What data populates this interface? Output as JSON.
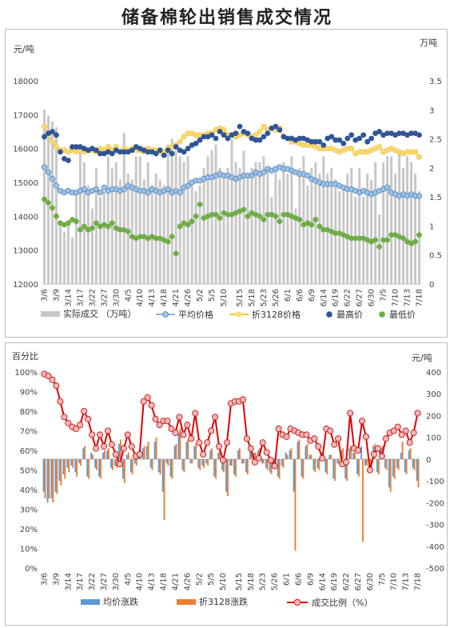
{
  "title": "储备棉轮出销售成交情况",
  "chart_data": [
    {
      "type": "bar+line+scatter",
      "left_axis": {
        "label": "元/吨",
        "ylim": [
          12000,
          18000
        ],
        "ticks": [
          12000,
          13000,
          14000,
          15000,
          16000,
          17000,
          18000
        ]
      },
      "right_axis": {
        "label": "万吨",
        "ylim": [
          0,
          3.5
        ],
        "ticks": [
          "0",
          "0.5",
          "1",
          "1.5",
          "2",
          "2.5",
          "3",
          "3.5"
        ]
      },
      "x_tick_labels": [
        "3/6",
        "3/9",
        "3/14",
        "3/17",
        "3/22",
        "3/27",
        "3/30",
        "4/5",
        "4/10",
        "4/13",
        "4/18",
        "4/21",
        "4/26",
        "5/2",
        "5/5",
        "5/10",
        "5/15",
        "5/18",
        "5/23",
        "5/26",
        "6/1",
        "6/6",
        "6/9",
        "6/14",
        "6/19",
        "6/22",
        "6/27",
        "6/30",
        "7/5",
        "7/10",
        "7/13",
        "7/18"
      ],
      "legend": [
        "实际成交 （万吨）",
        "平均价格",
        "折3128价格",
        "最高价",
        "最低价"
      ],
      "legend_position": "bottom",
      "colors": {
        "bar": "#c8c8c8",
        "avg": "#9dc3e6",
        "avg_stroke": "#4f81bd",
        "p3128": "#ffd966",
        "p3128_line": "#e5b800",
        "max": "#2f5597",
        "min": "#70ad47"
      },
      "points": 95,
      "bars_wan_ton": [
        3.0,
        2.9,
        2.8,
        2.7,
        1.0,
        0.9,
        1.1,
        0.8,
        1.6,
        2.3,
        2.1,
        1.7,
        1.3,
        2.0,
        1.5,
        1.6,
        2.2,
        2.0,
        2.1,
        1.8,
        2.6,
        1.9,
        1.8,
        2.2,
        2.2,
        1.8,
        2.1,
        1.7,
        1.9,
        1.8,
        1.7,
        2.4,
        2.5,
        2.3,
        2.2,
        2.1,
        2.2,
        1.8,
        1.6,
        1.7,
        2.0,
        2.2,
        2.3,
        2.4,
        2.0,
        1.9,
        2.0,
        2.5,
        2.1,
        2.0,
        2.3,
        1.9,
        2.0,
        2.1,
        2.1,
        2.2,
        2.0,
        1.5,
        2.0,
        1.8,
        2.1,
        1.9,
        2.2,
        1.3,
        2.0,
        2.2,
        1.7,
        2.0,
        2.1,
        1.9,
        2.2,
        1.9,
        2.0,
        1.8,
        1.6,
        1.7,
        1.9,
        2.0,
        1.5,
        2.0,
        1.5,
        1.9,
        1.8,
        2.1,
        1.2,
        2.1,
        2.2,
        2.2,
        1.9,
        2.3,
        2.0,
        2.2,
        2.1,
        1.9,
        1.6
      ],
      "avg_price": [
        15450,
        15300,
        15100,
        14900,
        14750,
        14700,
        14750,
        14700,
        14700,
        14750,
        14800,
        14700,
        14750,
        14800,
        14700,
        14850,
        14750,
        14800,
        14800,
        14750,
        14800,
        14900,
        14850,
        14800,
        14750,
        14750,
        14700,
        14800,
        14750,
        14700,
        14750,
        14800,
        14700,
        14750,
        14700,
        14850,
        14900,
        15000,
        15050,
        15050,
        15100,
        15150,
        15150,
        15200,
        15250,
        15200,
        15200,
        15150,
        15100,
        15150,
        15200,
        15200,
        15200,
        15300,
        15250,
        15300,
        15400,
        15350,
        15400,
        15450,
        15400,
        15400,
        15350,
        15300,
        15250,
        15250,
        15200,
        15100,
        15050,
        15000,
        14950,
        14950,
        14950,
        14950,
        14900,
        14850,
        14800,
        14800,
        14750,
        14700,
        14750,
        14700,
        14650,
        14700,
        14750,
        14800,
        14850,
        14700,
        14650,
        14600,
        14650,
        14600,
        14650,
        14600,
        14600
      ],
      "price_3128": [
        16650,
        16400,
        16200,
        16050,
        15950,
        15950,
        15900,
        15950,
        15900,
        15950,
        15900,
        15950,
        15950,
        15900,
        16000,
        15950,
        16050,
        15950,
        16050,
        15900,
        16000,
        15950,
        16000,
        15950,
        15950,
        15900,
        16000,
        15950,
        15950,
        15900,
        15900,
        16000,
        16050,
        16100,
        16200,
        16350,
        16450,
        16450,
        16400,
        16400,
        16400,
        16450,
        16450,
        16550,
        16600,
        16550,
        16400,
        16400,
        16350,
        16400,
        16450,
        16400,
        16350,
        16400,
        16500,
        16650,
        16550,
        16600,
        16550,
        16600,
        16350,
        16300,
        16200,
        16200,
        16150,
        16100,
        16100,
        16100,
        16050,
        16000,
        16000,
        16000,
        16000,
        15950,
        15900,
        15950,
        16000,
        16000,
        15850,
        15900,
        15900,
        15900,
        15950,
        16000,
        16050,
        15900,
        15950,
        16000,
        15950,
        15900,
        15850,
        15900,
        15900,
        15900,
        15750
      ],
      "max_price": [
        16350,
        16450,
        16500,
        16400,
        15900,
        15700,
        15650,
        16050,
        16050,
        16050,
        16000,
        15950,
        16000,
        15950,
        15850,
        15850,
        15900,
        15850,
        15950,
        15900,
        15900,
        15900,
        15950,
        16050,
        16000,
        15950,
        15900,
        15900,
        15850,
        15950,
        15800,
        15950,
        15850,
        16050,
        15950,
        15900,
        16000,
        16100,
        16150,
        16250,
        16350,
        16350,
        16400,
        16300,
        16500,
        16400,
        16300,
        16400,
        16450,
        16650,
        16500,
        16450,
        16300,
        16250,
        16250,
        16350,
        16450,
        16600,
        16650,
        16550,
        16350,
        16300,
        16300,
        16250,
        16300,
        16300,
        16250,
        16200,
        16200,
        16200,
        16100,
        16300,
        16350,
        16250,
        16250,
        16150,
        16300,
        16400,
        16250,
        16300,
        16400,
        16200,
        16300,
        16450,
        16500,
        16400,
        16450,
        16450,
        16400,
        16450,
        16450,
        16400,
        16450,
        16450,
        16400
      ],
      "min_price": [
        14500,
        14400,
        14250,
        14000,
        13800,
        13750,
        13800,
        13900,
        13850,
        13600,
        13700,
        13600,
        13650,
        13800,
        13700,
        13750,
        13700,
        13800,
        13650,
        13600,
        13600,
        13550,
        13400,
        13350,
        13400,
        13400,
        13350,
        13400,
        13350,
        13350,
        13300,
        13250,
        13400,
        12900,
        13700,
        13800,
        13750,
        13850,
        14000,
        14350,
        13950,
        14000,
        14050,
        14050,
        13950,
        14100,
        14050,
        14050,
        14100,
        14150,
        14200,
        14000,
        14100,
        14050,
        14000,
        13900,
        14050,
        14050,
        14000,
        13850,
        14050,
        14050,
        14000,
        13950,
        13900,
        13750,
        13800,
        13750,
        13900,
        13700,
        13600,
        13600,
        13550,
        13500,
        13500,
        13450,
        13400,
        13350,
        13350,
        13350,
        13350,
        13300,
        13250,
        13300,
        13100,
        13300,
        13300,
        13450,
        13450,
        13400,
        13350,
        13250,
        13200,
        13250,
        13450
      ]
    },
    {
      "type": "bar+line",
      "left_axis": {
        "label": "百分比",
        "ylim": [
          0,
          100
        ],
        "ticks": [
          "0%",
          "10%",
          "20%",
          "30%",
          "40%",
          "50%",
          "60%",
          "70%",
          "80%",
          "90%",
          "100%"
        ]
      },
      "right_axis": {
        "label": "元/吨",
        "ylim": [
          -500,
          400
        ],
        "ticks": [
          "-500",
          "-400",
          "-300",
          "-200",
          "-100",
          "0",
          "100",
          "200",
          "300",
          "400"
        ]
      },
      "x_tick_labels": [
        "3/6",
        "3/9",
        "3/14",
        "3/17",
        "3/22",
        "3/27",
        "3/30",
        "4/5",
        "4/10",
        "4/13",
        "4/18",
        "4/21",
        "4/26",
        "5/2",
        "5/5",
        "5/10",
        "5/15",
        "5/18",
        "5/23",
        "5/26",
        "6/1",
        "6/6",
        "6/9",
        "6/14",
        "6/19",
        "6/22",
        "6/27",
        "6/30",
        "7/5",
        "7/10",
        "7/13",
        "7/18"
      ],
      "legend": [
        "均价涨跌",
        "折3128涨跌",
        "成交比例（%）"
      ],
      "legend_position": "bottom",
      "colors": {
        "avg_change": "#5b9bd5",
        "p3128_change": "#ed7d31",
        "ratio_line": "#e00000",
        "ratio_marker": "#f4b6b6"
      },
      "points": 95,
      "avg_change_yuan": [
        -150,
        -200,
        -180,
        -150,
        -100,
        -70,
        -40,
        -30,
        -60,
        -20,
        50,
        -80,
        30,
        -40,
        -80,
        30,
        40,
        -40,
        -30,
        70,
        -90,
        20,
        -60,
        -20,
        20,
        50,
        60,
        -40,
        80,
        -60,
        -150,
        -20,
        -80,
        60,
        120,
        -50,
        80,
        -20,
        60,
        -40,
        -30,
        -20,
        40,
        -80,
        30,
        -50,
        -150,
        -30,
        -70,
        40,
        -20,
        -60,
        50,
        30,
        40,
        -20,
        -40,
        -60,
        -20,
        -80,
        -30,
        30,
        40,
        -150,
        80,
        -80,
        60,
        20,
        -50,
        -40,
        30,
        -60,
        20,
        -90,
        -20,
        40,
        -90,
        50,
        30,
        -70,
        60,
        -30,
        -40,
        60,
        -60,
        50,
        -40,
        -130,
        -80,
        -40,
        30,
        -60,
        40,
        -40,
        -100
      ],
      "p3128_change_yuan": [
        -180,
        -180,
        -200,
        -160,
        -120,
        -90,
        -60,
        -40,
        -80,
        -30,
        60,
        -90,
        20,
        -50,
        -90,
        40,
        50,
        -50,
        -40,
        90,
        -110,
        30,
        -70,
        -30,
        10,
        60,
        80,
        -50,
        100,
        -70,
        -280,
        -30,
        -90,
        70,
        140,
        -60,
        90,
        -20,
        70,
        -50,
        -40,
        -30,
        50,
        -90,
        40,
        -60,
        -170,
        -30,
        -80,
        50,
        -20,
        -70,
        60,
        30,
        50,
        -20,
        -50,
        -70,
        -20,
        -90,
        -40,
        20,
        50,
        -420,
        90,
        -90,
        70,
        20,
        -60,
        -50,
        30,
        -70,
        20,
        -100,
        -20,
        50,
        -100,
        60,
        30,
        -80,
        -380,
        -30,
        -50,
        70,
        -70,
        60,
        -50,
        -150,
        -90,
        -50,
        80,
        -70,
        50,
        -50,
        -130
      ],
      "ratio_pct": [
        99,
        98,
        96,
        93,
        85,
        77,
        74,
        72,
        71,
        73,
        80,
        76,
        68,
        61,
        68,
        62,
        70,
        63,
        58,
        53,
        61,
        68,
        62,
        57,
        58,
        85,
        87,
        83,
        76,
        73,
        75,
        75,
        71,
        69,
        77,
        68,
        73,
        66,
        79,
        64,
        58,
        64,
        70,
        77,
        62,
        55,
        64,
        84,
        85,
        85,
        86,
        66,
        61,
        54,
        56,
        64,
        59,
        55,
        52,
        71,
        68,
        67,
        71,
        70,
        69,
        68,
        68,
        65,
        66,
        62,
        56,
        71,
        70,
        63,
        66,
        53,
        54,
        79,
        61,
        60,
        75,
        67,
        50,
        58,
        61,
        57,
        66,
        69,
        70,
        72,
        68,
        70,
        64,
        69,
        79
      ]
    }
  ]
}
